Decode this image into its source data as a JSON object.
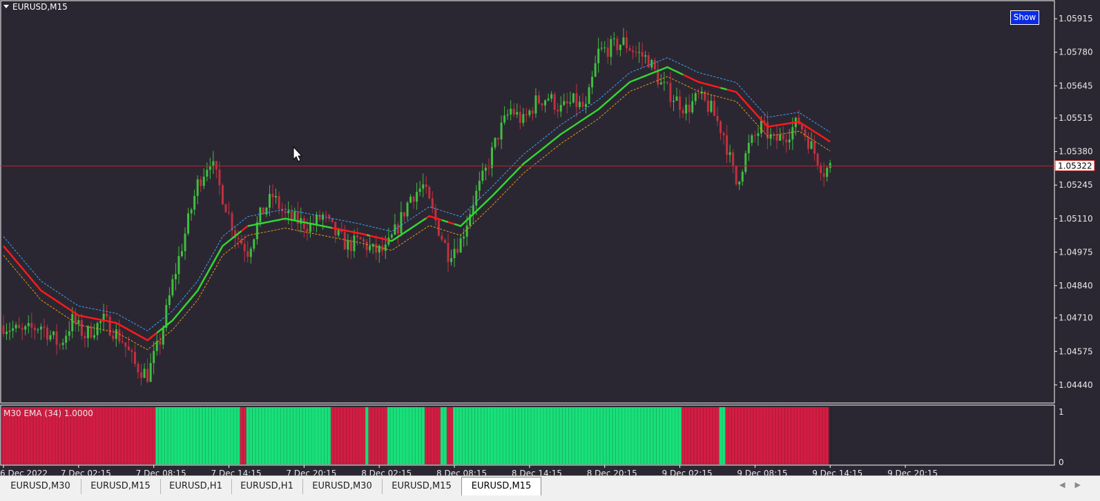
{
  "chart_window": {
    "title": "EURUSD,M15",
    "show_button_label": "Show",
    "current_price_label": "1.05322",
    "colors": {
      "background": "#2b2732",
      "bull_candle": "#3fbf3f",
      "bear_candle": "#c0303f",
      "ema_red": "#ff1a1a",
      "ema_green": "#33d633",
      "band_upper": "#3aa6ff",
      "band_lower": "#e89a1a",
      "price_line": "#c81e1e"
    }
  },
  "indicator": {
    "label": "M30 EMA (34) 1.0000",
    "scale_top": "1",
    "scale_bottom": "0",
    "colors": {
      "up": "#19e07a",
      "down": "#d31d43"
    }
  },
  "chart_data": {
    "type": "candlestick",
    "symbol": "EURUSD",
    "timeframe": "M15",
    "y_ticks": [
      "1.05915",
      "1.05780",
      "1.05645",
      "1.05515",
      "1.05380",
      "1.05245",
      "1.05110",
      "1.04975",
      "1.04840",
      "1.04710",
      "1.04575",
      "1.04440"
    ],
    "x_ticks": [
      "6 Dec 2022",
      "7 Dec 02:15",
      "7 Dec 08:15",
      "7 Dec 14:15",
      "7 Dec 20:15",
      "8 Dec 02:15",
      "8 Dec 08:15",
      "8 Dec 14:15",
      "8 Dec 20:15",
      "9 Dec 02:15",
      "9 Dec 08:15",
      "9 Dec 14:15",
      "9 Dec 20:15"
    ],
    "current_price": 1.05322,
    "ylim": [
      1.0437,
      1.05985
    ],
    "close_path": [
      {
        "i": 0,
        "p": 1.0468
      },
      {
        "i": 6,
        "p": 1.0465
      },
      {
        "i": 12,
        "p": 1.0468
      },
      {
        "i": 18,
        "p": 1.046
      },
      {
        "i": 22,
        "p": 1.047
      },
      {
        "i": 26,
        "p": 1.0464
      },
      {
        "i": 32,
        "p": 1.047
      },
      {
        "i": 38,
        "p": 1.0462
      },
      {
        "i": 42,
        "p": 1.0452
      },
      {
        "i": 46,
        "p": 1.0448
      },
      {
        "i": 50,
        "p": 1.0462
      },
      {
        "i": 54,
        "p": 1.0485
      },
      {
        "i": 58,
        "p": 1.0505
      },
      {
        "i": 62,
        "p": 1.0525
      },
      {
        "i": 66,
        "p": 1.0535
      },
      {
        "i": 70,
        "p": 1.052
      },
      {
        "i": 74,
        "p": 1.0505
      },
      {
        "i": 78,
        "p": 1.0498
      },
      {
        "i": 82,
        "p": 1.0512
      },
      {
        "i": 86,
        "p": 1.052
      },
      {
        "i": 90,
        "p": 1.0512
      },
      {
        "i": 94,
        "p": 1.051
      },
      {
        "i": 98,
        "p": 1.0508
      },
      {
        "i": 102,
        "p": 1.0512
      },
      {
        "i": 106,
        "p": 1.0505
      },
      {
        "i": 110,
        "p": 1.05
      },
      {
        "i": 114,
        "p": 1.0502
      },
      {
        "i": 118,
        "p": 1.0498
      },
      {
        "i": 122,
        "p": 1.0498
      },
      {
        "i": 126,
        "p": 1.0508
      },
      {
        "i": 130,
        "p": 1.052
      },
      {
        "i": 134,
        "p": 1.0524
      },
      {
        "i": 138,
        "p": 1.051
      },
      {
        "i": 142,
        "p": 1.0497
      },
      {
        "i": 146,
        "p": 1.0502
      },
      {
        "i": 150,
        "p": 1.0518
      },
      {
        "i": 154,
        "p": 1.053
      },
      {
        "i": 158,
        "p": 1.0545
      },
      {
        "i": 162,
        "p": 1.0555
      },
      {
        "i": 166,
        "p": 1.055
      },
      {
        "i": 170,
        "p": 1.0558
      },
      {
        "i": 174,
        "p": 1.056
      },
      {
        "i": 178,
        "p": 1.0555
      },
      {
        "i": 182,
        "p": 1.0558
      },
      {
        "i": 186,
        "p": 1.0555
      },
      {
        "i": 190,
        "p": 1.0578
      },
      {
        "i": 194,
        "p": 1.058
      },
      {
        "i": 198,
        "p": 1.0582
      },
      {
        "i": 202,
        "p": 1.0578
      },
      {
        "i": 206,
        "p": 1.0575
      },
      {
        "i": 210,
        "p": 1.0565
      },
      {
        "i": 214,
        "p": 1.056
      },
      {
        "i": 218,
        "p": 1.0555
      },
      {
        "i": 222,
        "p": 1.056
      },
      {
        "i": 226,
        "p": 1.0555
      },
      {
        "i": 230,
        "p": 1.0545
      },
      {
        "i": 234,
        "p": 1.0525
      },
      {
        "i": 238,
        "p": 1.054
      },
      {
        "i": 242,
        "p": 1.0548
      },
      {
        "i": 246,
        "p": 1.0542
      },
      {
        "i": 250,
        "p": 1.0545
      },
      {
        "i": 254,
        "p": 1.055
      },
      {
        "i": 258,
        "p": 1.054
      },
      {
        "i": 262,
        "p": 1.053
      },
      {
        "i": 264,
        "p": 1.0532
      }
    ],
    "ema_path": [
      {
        "i": 0,
        "p": 1.05
      },
      {
        "i": 12,
        "p": 1.0482
      },
      {
        "i": 24,
        "p": 1.0472
      },
      {
        "i": 36,
        "p": 1.0469
      },
      {
        "i": 46,
        "p": 1.0462
      },
      {
        "i": 54,
        "p": 1.047
      },
      {
        "i": 62,
        "p": 1.0482
      },
      {
        "i": 70,
        "p": 1.05
      },
      {
        "i": 78,
        "p": 1.0508
      },
      {
        "i": 90,
        "p": 1.0511
      },
      {
        "i": 102,
        "p": 1.0508
      },
      {
        "i": 114,
        "p": 1.0505
      },
      {
        "i": 124,
        "p": 1.0502
      },
      {
        "i": 136,
        "p": 1.0512
      },
      {
        "i": 146,
        "p": 1.0508
      },
      {
        "i": 156,
        "p": 1.052
      },
      {
        "i": 166,
        "p": 1.0533
      },
      {
        "i": 178,
        "p": 1.0545
      },
      {
        "i": 190,
        "p": 1.0555
      },
      {
        "i": 200,
        "p": 1.0566
      },
      {
        "i": 212,
        "p": 1.0572
      },
      {
        "i": 222,
        "p": 1.0566
      },
      {
        "i": 234,
        "p": 1.0562
      },
      {
        "i": 244,
        "p": 1.0548
      },
      {
        "i": 254,
        "p": 1.055
      },
      {
        "i": 264,
        "p": 1.0542
      }
    ],
    "trend_segments": [
      {
        "from": 0,
        "to": 49,
        "trend": "down"
      },
      {
        "from": 49,
        "to": 76,
        "trend": "up"
      },
      {
        "from": 76,
        "to": 78,
        "trend": "down"
      },
      {
        "from": 78,
        "to": 105,
        "trend": "up"
      },
      {
        "from": 105,
        "to": 116,
        "trend": "down"
      },
      {
        "from": 116,
        "to": 117,
        "trend": "up"
      },
      {
        "from": 117,
        "to": 123,
        "trend": "down"
      },
      {
        "from": 123,
        "to": 135,
        "trend": "up"
      },
      {
        "from": 135,
        "to": 140,
        "trend": "down"
      },
      {
        "from": 140,
        "to": 142,
        "trend": "up"
      },
      {
        "from": 142,
        "to": 144,
        "trend": "down"
      },
      {
        "from": 144,
        "to": 217,
        "trend": "up"
      },
      {
        "from": 217,
        "to": 229,
        "trend": "down"
      },
      {
        "from": 229,
        "to": 231,
        "trend": "up"
      },
      {
        "from": 231,
        "to": 264,
        "trend": "down"
      }
    ],
    "bar_count": 265
  },
  "tabs": [
    {
      "label": "EURUSD,M30",
      "active": false
    },
    {
      "label": "EURUSD,M15",
      "active": false
    },
    {
      "label": "EURUSD,H1",
      "active": false
    },
    {
      "label": "EURUSD,H1",
      "active": false
    },
    {
      "label": "EURUSD,M30",
      "active": false
    },
    {
      "label": "EURUSD,M15",
      "active": false
    },
    {
      "label": "EURUSD,M15",
      "active": true
    }
  ],
  "tab_scroll": {
    "left_icon": "chevron-left-icon",
    "right_icon": "chevron-right-icon"
  }
}
